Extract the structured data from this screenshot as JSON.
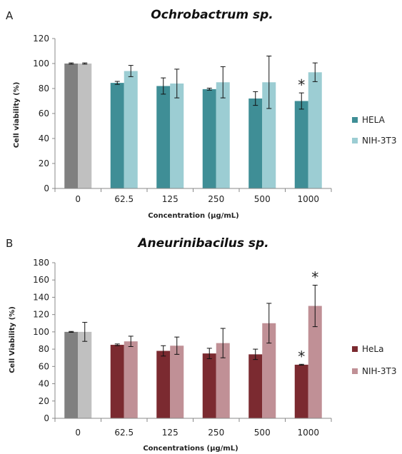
{
  "chart_data": [
    {
      "type": "bar",
      "panel_label": "A",
      "title": "Ochrobactrum sp.",
      "xlabel": "Concentration (μg/mL)",
      "ylabel": "Cell viability  (%)",
      "categories": [
        "0",
        "62.5",
        "125",
        "250",
        "500",
        "1000"
      ],
      "ylim": [
        0,
        120
      ],
      "yticks": [
        "0",
        "20",
        "40",
        "60",
        "80",
        "100",
        "120"
      ],
      "control_colors": [
        "#808080",
        "#c0c0c0"
      ],
      "series": [
        {
          "name": "HELA",
          "color": "#3f8e96",
          "values": [
            100,
            84.5,
            82,
            79.5,
            72,
            70
          ],
          "errors": [
            0.5,
            1.2,
            6.5,
            0.8,
            5.5,
            6.5
          ]
        },
        {
          "name": "NIH-3T3",
          "color": "#9ccdd3",
          "values": [
            100,
            94,
            84,
            85,
            85,
            93
          ],
          "errors": [
            0.5,
            4.5,
            11.5,
            12.5,
            21,
            7.5
          ]
        }
      ],
      "annotations": [
        {
          "category": "1000",
          "series": 0,
          "text": "*"
        }
      ],
      "legend_position": "right",
      "grid": false
    },
    {
      "type": "bar",
      "panel_label": "B",
      "title": "Aneurinibacilus sp.",
      "xlabel": "Concentrations (μg/mL)",
      "ylabel": "Cell Viability (%)",
      "categories": [
        "0",
        "62.5",
        "125",
        "250",
        "500",
        "1000"
      ],
      "ylim": [
        0,
        180
      ],
      "yticks": [
        "0",
        "20",
        "40",
        "60",
        "80",
        "100",
        "120",
        "140",
        "160",
        "180"
      ],
      "control_colors": [
        "#808080",
        "#c0c0c0"
      ],
      "series": [
        {
          "name": "HeLa",
          "color": "#7b2a30",
          "values": [
            100,
            85,
            78,
            75,
            74,
            62
          ],
          "errors": [
            0.5,
            1,
            6,
            6,
            6,
            0.5
          ]
        },
        {
          "name": "NIH-3T3",
          "color": "#c09096",
          "values": [
            100,
            89,
            84,
            87,
            110,
            130
          ],
          "errors": [
            11,
            6,
            10,
            17,
            23,
            24
          ]
        }
      ],
      "annotations": [
        {
          "category": "1000",
          "series": 0,
          "text": "*"
        },
        {
          "category": "1000",
          "series": 1,
          "text": "*"
        }
      ],
      "legend_position": "right",
      "grid": false
    }
  ]
}
